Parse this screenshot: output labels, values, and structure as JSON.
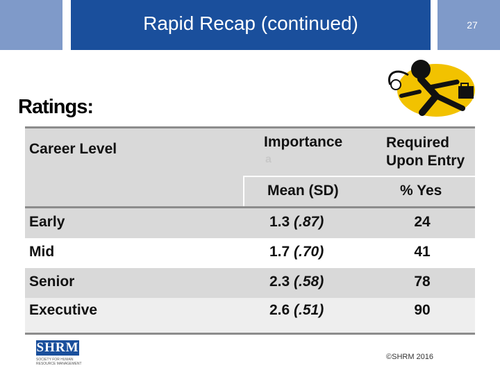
{
  "slide": {
    "title": "Rapid Recap (continued)",
    "page_number": "27",
    "subtitle": "Ratings:",
    "colors": {
      "title_bar": "#1a4f9c",
      "side_bars": "#7f9ac9",
      "row_shade": "#d9d9d9"
    }
  },
  "table": {
    "headers": {
      "career_level": "Career Level",
      "importance": "Importance",
      "importance_sub": "a",
      "required": "Required Upon Entry",
      "mean_sd": "Mean (SD)",
      "pct_yes": "% Yes"
    },
    "rows": [
      {
        "level": "Early",
        "mean": "1.3",
        "sd": "(.87)",
        "pct": "24"
      },
      {
        "level": "Mid",
        "mean": "1.7",
        "sd": "(.70)",
        "pct": "41"
      },
      {
        "level": "Senior",
        "mean": "2.3",
        "sd": "(.58)",
        "pct": "78"
      },
      {
        "level": "Executive",
        "mean": "2.6",
        "sd": "(.51)",
        "pct": "90"
      }
    ]
  },
  "footer": {
    "logo_text": "SHRM",
    "logo_tagline": "SOCIETY FOR HUMAN RESOURCE MANAGEMENT",
    "copyright": "©SHRM 2016"
  },
  "clipart": {
    "icon": "running-businessman-icon"
  }
}
